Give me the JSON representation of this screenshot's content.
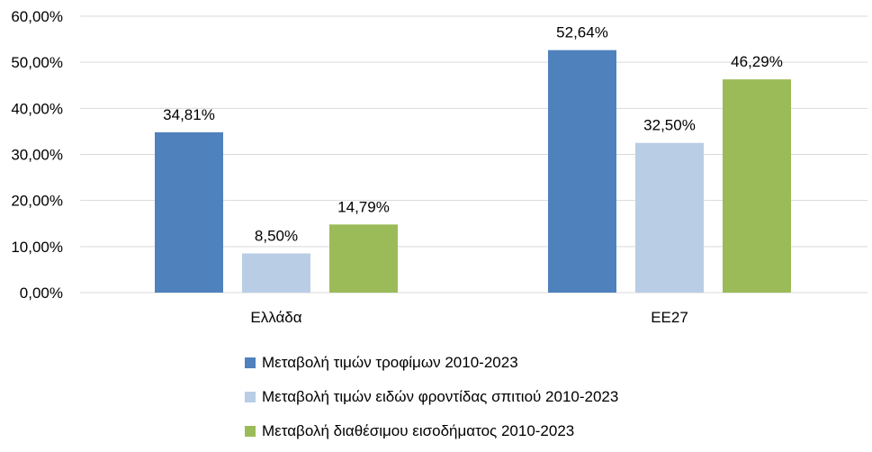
{
  "chart_data": {
    "type": "bar",
    "categories": [
      "Ελλάδα",
      "ΕΕ27"
    ],
    "series": [
      {
        "name": "Μεταβολή τιμών τροφίμων 2010-2023",
        "values": [
          34.81,
          52.64
        ],
        "labels": [
          "34,81%",
          "52,64%"
        ],
        "color": "#4f81bd"
      },
      {
        "name": "Μεταβολή τιμών ειδών φροντίδας σπιτιού 2010-2023",
        "values": [
          8.5,
          32.5
        ],
        "labels": [
          "8,50%",
          "32,50%"
        ],
        "color": "#b9cde5"
      },
      {
        "name": "Μεταβολή διαθέσιμου εισοδήματος 2010-2023",
        "values": [
          14.79,
          46.29
        ],
        "labels": [
          "14,79%",
          "46,29%"
        ],
        "color": "#9bbb59"
      }
    ],
    "ylim": [
      0,
      60
    ],
    "yticks": [
      0,
      10,
      20,
      30,
      40,
      50,
      60
    ],
    "ytick_labels": [
      "0,00%",
      "10,00%",
      "20,00%",
      "30,00%",
      "40,00%",
      "50,00%",
      "60,00%"
    ],
    "grid": true,
    "legend_position": "bottom",
    "title": "",
    "xlabel": "",
    "ylabel": ""
  }
}
